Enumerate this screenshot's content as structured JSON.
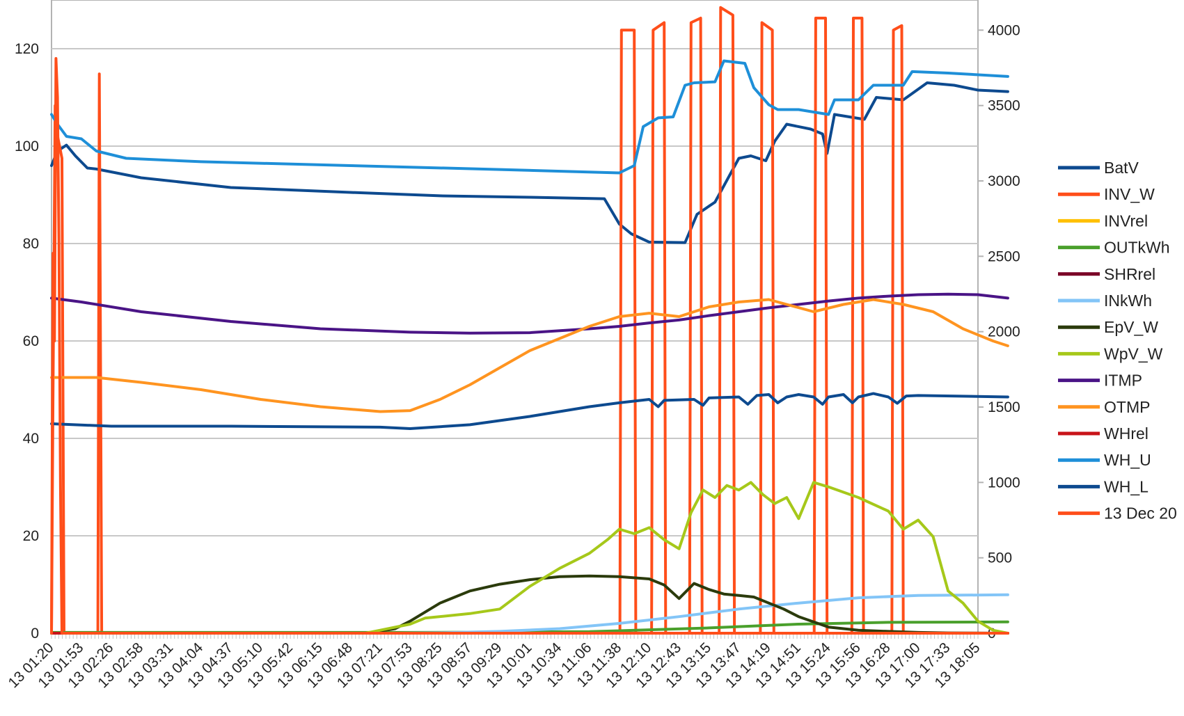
{
  "chart_data": {
    "type": "line",
    "title": "",
    "categories": [
      "13 01:20",
      "13 01:53",
      "13 02:26",
      "13 02:58",
      "13 03:31",
      "13 04:04",
      "13 04:37",
      "13 05:10",
      "13 05:42",
      "13 06:15",
      "13 06:48",
      "13 07:21",
      "13 07:53",
      "13 08:25",
      "13 08:57",
      "13 09:29",
      "13 10:01",
      "13 10:34",
      "13 11:06",
      "13 11:38",
      "13 12:10",
      "13 12:43",
      "13 13:15",
      "13 13:47",
      "13 14:19",
      "13 14:51",
      "13 15:24",
      "13 15:56",
      "13 16:28",
      "13 17:00",
      "13 17:33",
      "13 18:05"
    ],
    "y_left": {
      "min": 0,
      "max": 130,
      "ticks": [
        0,
        20,
        40,
        60,
        80,
        100,
        120
      ]
    },
    "y_right": {
      "min": 0,
      "max": 4200,
      "ticks": [
        0,
        500,
        1000,
        1500,
        2000,
        2500,
        3000,
        3500,
        4000
      ]
    },
    "grid": true,
    "legend_position": "right",
    "series": [
      {
        "name": "BatV",
        "color": "#0d4a8f",
        "axis": "left",
        "points": [
          [
            0,
            96
          ],
          [
            0.2,
            99
          ],
          [
            0.5,
            100.2
          ],
          [
            0.8,
            98
          ],
          [
            1.2,
            95.5
          ],
          [
            1.5,
            95.3
          ],
          [
            3,
            93.5
          ],
          [
            6,
            91.5
          ],
          [
            10,
            90.5
          ],
          [
            13,
            89.8
          ],
          [
            16,
            89.5
          ],
          [
            18.5,
            89.2
          ],
          [
            19,
            84
          ],
          [
            19.4,
            82
          ],
          [
            20,
            80.3
          ],
          [
            21.2,
            80.2
          ],
          [
            21.6,
            86
          ],
          [
            22.2,
            88.5
          ],
          [
            23,
            97.5
          ],
          [
            23.4,
            98
          ],
          [
            23.9,
            97
          ],
          [
            24.2,
            101
          ],
          [
            24.6,
            104.5
          ],
          [
            25.4,
            103.5
          ],
          [
            25.8,
            102.5
          ],
          [
            25.95,
            98.5
          ],
          [
            26.2,
            106.5
          ],
          [
            27.2,
            105.5
          ],
          [
            27.6,
            110
          ],
          [
            28.5,
            109.5
          ],
          [
            29.3,
            113
          ],
          [
            30.2,
            112.5
          ],
          [
            31,
            111.5
          ],
          [
            32,
            111.2
          ]
        ]
      },
      {
        "name": "INV_W",
        "color": "#ff4e1a",
        "axis": "right",
        "points": [
          [
            0,
            0
          ],
          [
            0.05,
            1550
          ],
          [
            0.12,
            3500
          ],
          [
            0.2,
            3300
          ],
          [
            0.35,
            3150
          ],
          [
            0.42,
            0
          ],
          [
            1.55,
            0
          ],
          [
            1.6,
            3710
          ],
          [
            1.68,
            0
          ],
          [
            19.02,
            0
          ],
          [
            19.07,
            4000
          ],
          [
            19.5,
            4000
          ],
          [
            19.55,
            0
          ],
          [
            20.08,
            0
          ],
          [
            20.13,
            4000
          ],
          [
            20.5,
            4050
          ],
          [
            20.55,
            0
          ],
          [
            21.35,
            0
          ],
          [
            21.4,
            4050
          ],
          [
            21.72,
            4080
          ],
          [
            21.77,
            0
          ],
          [
            22.34,
            0
          ],
          [
            22.39,
            4150
          ],
          [
            22.8,
            4100
          ],
          [
            22.85,
            0
          ],
          [
            23.72,
            0
          ],
          [
            23.77,
            4050
          ],
          [
            24.12,
            4000
          ],
          [
            24.17,
            0
          ],
          [
            25.52,
            0
          ],
          [
            25.57,
            4080
          ],
          [
            25.9,
            4080
          ],
          [
            25.95,
            0
          ],
          [
            26.78,
            0
          ],
          [
            26.83,
            4080
          ],
          [
            27.12,
            4080
          ],
          [
            27.17,
            0
          ],
          [
            28.12,
            0
          ],
          [
            28.17,
            4000
          ],
          [
            28.45,
            4030
          ],
          [
            28.5,
            0
          ],
          [
            32,
            0
          ]
        ]
      },
      {
        "name": "INVrel",
        "color": "#ffc000",
        "axis": "right",
        "points": [
          [
            0,
            0
          ],
          [
            32,
            0
          ]
        ]
      },
      {
        "name": "OUTkWh",
        "color": "#4aa02c",
        "axis": "right",
        "points": [
          [
            0,
            5
          ],
          [
            12,
            5
          ],
          [
            18,
            10
          ],
          [
            22,
            35
          ],
          [
            25,
            60
          ],
          [
            28,
            72
          ],
          [
            32,
            75
          ]
        ]
      },
      {
        "name": "SHRrel",
        "color": "#7a0026",
        "axis": "right",
        "points": [
          [
            0,
            0
          ],
          [
            32,
            0
          ]
        ]
      },
      {
        "name": "INkWh",
        "color": "#83c5f7",
        "axis": "right",
        "points": [
          [
            0,
            0
          ],
          [
            11.5,
            0
          ],
          [
            13,
            3
          ],
          [
            15,
            12
          ],
          [
            17,
            30
          ],
          [
            19,
            65
          ],
          [
            21,
            110
          ],
          [
            23,
            160
          ],
          [
            25,
            200
          ],
          [
            27,
            235
          ],
          [
            29,
            250
          ],
          [
            32,
            255
          ]
        ]
      },
      {
        "name": "EpV_W",
        "color": "#2b3b0c",
        "axis": "right",
        "points": [
          [
            0,
            0
          ],
          [
            10.5,
            0
          ],
          [
            11.5,
            30
          ],
          [
            12,
            80
          ],
          [
            12.5,
            140
          ],
          [
            13,
            200
          ],
          [
            14,
            280
          ],
          [
            15,
            325
          ],
          [
            16,
            355
          ],
          [
            17,
            375
          ],
          [
            18,
            380
          ],
          [
            19,
            375
          ],
          [
            20,
            360
          ],
          [
            20.5,
            320
          ],
          [
            21,
            230
          ],
          [
            21.5,
            330
          ],
          [
            22,
            290
          ],
          [
            22.5,
            260
          ],
          [
            23,
            250
          ],
          [
            23.5,
            240
          ],
          [
            24,
            200
          ],
          [
            24.5,
            160
          ],
          [
            25,
            110
          ],
          [
            25.5,
            75
          ],
          [
            26,
            40
          ],
          [
            27,
            20
          ],
          [
            28,
            12
          ],
          [
            29,
            5
          ],
          [
            30,
            2
          ],
          [
            32,
            0
          ]
        ]
      },
      {
        "name": "WpV_W",
        "color": "#a6c81a",
        "axis": "right",
        "points": [
          [
            0,
            0
          ],
          [
            10.5,
            0
          ],
          [
            11,
            20
          ],
          [
            12,
            60
          ],
          [
            12.5,
            100
          ],
          [
            14,
            130
          ],
          [
            15,
            160
          ],
          [
            16,
            310
          ],
          [
            17,
            430
          ],
          [
            18,
            530
          ],
          [
            18.6,
            620
          ],
          [
            19,
            690
          ],
          [
            19.5,
            660
          ],
          [
            20,
            700
          ],
          [
            20.5,
            620
          ],
          [
            21,
            560
          ],
          [
            21.4,
            800
          ],
          [
            21.8,
            950
          ],
          [
            22.2,
            900
          ],
          [
            22.6,
            980
          ],
          [
            23,
            950
          ],
          [
            23.4,
            1000
          ],
          [
            23.8,
            920
          ],
          [
            24.2,
            860
          ],
          [
            24.6,
            900
          ],
          [
            25,
            760
          ],
          [
            25.5,
            1000
          ],
          [
            26,
            970
          ],
          [
            27,
            900
          ],
          [
            28,
            810
          ],
          [
            28.5,
            690
          ],
          [
            29,
            750
          ],
          [
            29.5,
            640
          ],
          [
            30,
            280
          ],
          [
            30.5,
            200
          ],
          [
            31,
            80
          ],
          [
            31.5,
            20
          ],
          [
            32,
            0
          ]
        ]
      },
      {
        "name": "ITMP",
        "color": "#4a1486",
        "axis": "left",
        "points": [
          [
            0,
            68.8
          ],
          [
            1,
            68
          ],
          [
            3,
            66
          ],
          [
            6,
            64
          ],
          [
            9,
            62.5
          ],
          [
            12,
            61.8
          ],
          [
            14,
            61.6
          ],
          [
            16,
            61.7
          ],
          [
            18,
            62.5
          ],
          [
            19,
            63
          ],
          [
            20,
            63.7
          ],
          [
            21,
            64.3
          ],
          [
            22,
            65.2
          ],
          [
            23,
            66
          ],
          [
            24,
            66.8
          ],
          [
            25,
            67.5
          ],
          [
            26,
            68.2
          ],
          [
            27,
            68.8
          ],
          [
            28,
            69.2
          ],
          [
            29,
            69.5
          ],
          [
            30,
            69.6
          ],
          [
            31,
            69.5
          ],
          [
            32,
            68.8
          ]
        ]
      },
      {
        "name": "OTMP",
        "color": "#ff9420",
        "axis": "left",
        "points": [
          [
            0,
            52.5
          ],
          [
            1.5,
            52.5
          ],
          [
            3,
            51.5
          ],
          [
            5,
            50
          ],
          [
            7,
            48
          ],
          [
            9,
            46.5
          ],
          [
            11,
            45.5
          ],
          [
            12,
            45.7
          ],
          [
            13,
            48
          ],
          [
            14,
            51
          ],
          [
            15,
            54.5
          ],
          [
            16,
            58
          ],
          [
            17,
            60.5
          ],
          [
            18,
            63
          ],
          [
            19,
            65
          ],
          [
            20,
            65.7
          ],
          [
            21,
            65
          ],
          [
            22,
            67
          ],
          [
            23,
            68
          ],
          [
            24,
            68.5
          ],
          [
            24.6,
            67.5
          ],
          [
            25.5,
            66
          ],
          [
            26.5,
            67.5
          ],
          [
            27.5,
            68.5
          ],
          [
            28.5,
            67.5
          ],
          [
            29.5,
            66
          ],
          [
            30.5,
            62.5
          ],
          [
            31.5,
            60
          ],
          [
            32,
            59
          ]
        ]
      },
      {
        "name": "WHrel",
        "color": "#c81319",
        "axis": "right",
        "points": [
          [
            0,
            0
          ],
          [
            32,
            0
          ]
        ]
      },
      {
        "name": "WH_U",
        "color": "#1e8fd8",
        "axis": "left",
        "points": [
          [
            0,
            106.5
          ],
          [
            0.2,
            104.5
          ],
          [
            0.5,
            102
          ],
          [
            1,
            101.5
          ],
          [
            1.5,
            99
          ],
          [
            2.5,
            97.5
          ],
          [
            5,
            96.8
          ],
          [
            10,
            96
          ],
          [
            15,
            95.2
          ],
          [
            19,
            94.5
          ],
          [
            19.5,
            96
          ],
          [
            19.8,
            104
          ],
          [
            20.3,
            105.8
          ],
          [
            20.8,
            106
          ],
          [
            21.2,
            112.5
          ],
          [
            21.5,
            113
          ],
          [
            22.2,
            113.2
          ],
          [
            22.5,
            117.5
          ],
          [
            23.2,
            117
          ],
          [
            23.5,
            112
          ],
          [
            24,
            108.5
          ],
          [
            24.3,
            107.5
          ],
          [
            25,
            107.5
          ],
          [
            26,
            106.5
          ],
          [
            26.2,
            109.5
          ],
          [
            27,
            109.5
          ],
          [
            27.5,
            112.5
          ],
          [
            28.5,
            112.5
          ],
          [
            28.8,
            115.3
          ],
          [
            30,
            115
          ],
          [
            32,
            114.3
          ]
        ]
      },
      {
        "name": "WH_L",
        "color": "#0d4a8f",
        "axis": "left",
        "points": [
          [
            0,
            43
          ],
          [
            2,
            42.5
          ],
          [
            6,
            42.5
          ],
          [
            11,
            42.3
          ],
          [
            12,
            42
          ],
          [
            14,
            42.8
          ],
          [
            16,
            44.5
          ],
          [
            18,
            46.5
          ],
          [
            19,
            47.3
          ],
          [
            20,
            48
          ],
          [
            20.3,
            46.5
          ],
          [
            20.5,
            47.8
          ],
          [
            21.5,
            48
          ],
          [
            21.8,
            46.8
          ],
          [
            22,
            48.3
          ],
          [
            23,
            48.5
          ],
          [
            23.3,
            47
          ],
          [
            23.6,
            48.8
          ],
          [
            24,
            49
          ],
          [
            24.3,
            47.3
          ],
          [
            24.6,
            48.5
          ],
          [
            25,
            49
          ],
          [
            25.5,
            48.5
          ],
          [
            25.8,
            47
          ],
          [
            26,
            48.5
          ],
          [
            26.5,
            49
          ],
          [
            26.8,
            47.3
          ],
          [
            27,
            48.5
          ],
          [
            27.5,
            49.2
          ],
          [
            28,
            48.5
          ],
          [
            28.3,
            47.2
          ],
          [
            28.6,
            48.7
          ],
          [
            29,
            48.8
          ],
          [
            32,
            48.5
          ]
        ]
      },
      {
        "name": "13 Dec 20",
        "color": "#ff4e1a",
        "axis": "left",
        "points": [
          [
            0,
            0
          ],
          [
            0.05,
            78
          ],
          [
            0.1,
            60
          ],
          [
            0.15,
            118
          ],
          [
            0.2,
            110
          ],
          [
            0.25,
            80
          ],
          [
            0.3,
            30
          ],
          [
            0.35,
            0
          ],
          [
            32,
            0
          ]
        ]
      }
    ]
  }
}
